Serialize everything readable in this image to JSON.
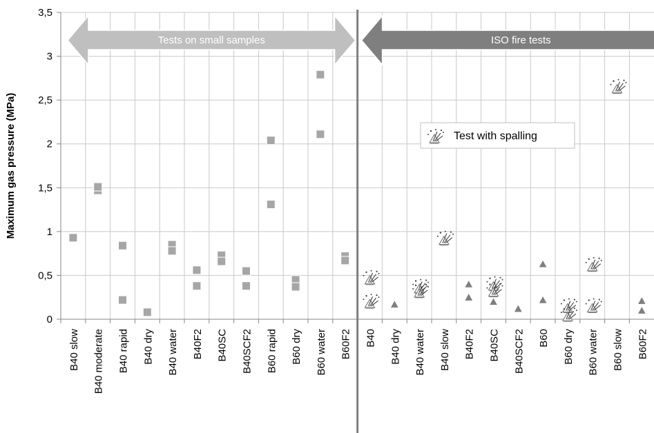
{
  "chart_data": {
    "type": "scatter",
    "ylabel": "Maximum gas pressure (MPa)",
    "ylim": [
      0,
      3.5
    ],
    "yticks": [
      "0",
      "0,5",
      "1",
      "1,5",
      "2",
      "2,5",
      "3",
      "3,5"
    ],
    "grid": true,
    "categories": [
      "B40 slow",
      "B40 moderate",
      "B40 rapid",
      "B40 dry",
      "B40 water",
      "B40F2",
      "B40SC",
      "B40SCF2",
      "B60 rapid",
      "B60 dry",
      "B60 water",
      "B60F2",
      "B40",
      "B40 dry",
      "B40 water",
      "B40 slow",
      "B40F2",
      "B40SC",
      "B40SCF2",
      "B60",
      "B60 dry",
      "B60 water",
      "B60 slow",
      "B60F2"
    ],
    "groups": [
      {
        "label": "Tests on small samples",
        "color": "#bfbfbf"
      },
      {
        "label": "ISO fire tests",
        "color": "#7f7f7f"
      }
    ],
    "series": [
      {
        "name": "",
        "marker": "square",
        "color": "#a6a6a6",
        "points": [
          {
            "category": 0,
            "y": 0.93
          },
          {
            "category": 1,
            "y": 1.47
          },
          {
            "category": 1,
            "y": 1.51
          },
          {
            "category": 2,
            "y": 0.84
          },
          {
            "category": 2,
            "y": 0.22
          },
          {
            "category": 3,
            "y": 0.08
          },
          {
            "category": 4,
            "y": 0.85
          },
          {
            "category": 4,
            "y": 0.78
          },
          {
            "category": 5,
            "y": 0.56
          },
          {
            "category": 5,
            "y": 0.38
          },
          {
            "category": 6,
            "y": 0.73
          },
          {
            "category": 6,
            "y": 0.66
          },
          {
            "category": 7,
            "y": 0.55
          },
          {
            "category": 7,
            "y": 0.38
          },
          {
            "category": 8,
            "y": 2.04
          },
          {
            "category": 8,
            "y": 1.31
          },
          {
            "category": 9,
            "y": 0.45
          },
          {
            "category": 9,
            "y": 0.37
          },
          {
            "category": 10,
            "y": 2.79
          },
          {
            "category": 10,
            "y": 2.11
          },
          {
            "category": 11,
            "y": 0.72
          },
          {
            "category": 11,
            "y": 0.67
          }
        ]
      },
      {
        "name": "",
        "marker": "triangle",
        "color": "#7f7f7f",
        "points": [
          {
            "category": 13,
            "y": 0.17
          },
          {
            "category": 16,
            "y": 0.4
          },
          {
            "category": 16,
            "y": 0.25
          },
          {
            "category": 17,
            "y": 0.2
          },
          {
            "category": 18,
            "y": 0.12
          },
          {
            "category": 19,
            "y": 0.63
          },
          {
            "category": 19,
            "y": 0.22
          },
          {
            "category": 23,
            "y": 0.21
          },
          {
            "category": 23,
            "y": 0.1
          }
        ]
      },
      {
        "name": "Test with spalling",
        "marker": "spalling",
        "color": "#ffffff",
        "points": [
          {
            "category": 12,
            "y": 0.45
          },
          {
            "category": 12,
            "y": 0.18
          },
          {
            "category": 14,
            "y": 0.35
          },
          {
            "category": 14,
            "y": 0.3
          },
          {
            "category": 15,
            "y": 0.9
          },
          {
            "category": 17,
            "y": 0.38
          },
          {
            "category": 17,
            "y": 0.31
          },
          {
            "category": 20,
            "y": 0.13
          },
          {
            "category": 20,
            "y": 0.03
          },
          {
            "category": 21,
            "y": 0.6
          },
          {
            "category": 21,
            "y": 0.13
          },
          {
            "category": 22,
            "y": 2.63
          }
        ]
      }
    ],
    "legend": {
      "label": "Test with spalling",
      "placement": "center"
    }
  }
}
